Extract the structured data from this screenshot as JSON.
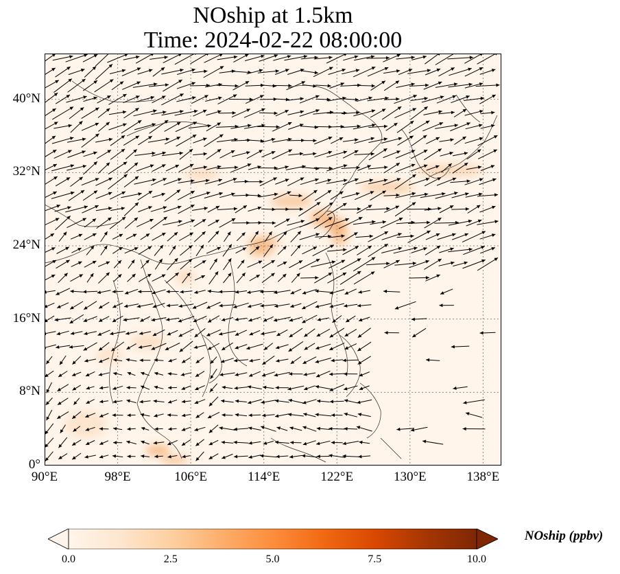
{
  "title_line1": "NOship at 1.5km",
  "title_line2": "Time: 2024-02-22 08:00:00",
  "map": {
    "lon_range": [
      90,
      140
    ],
    "lat_range": [
      0,
      45
    ],
    "lat_ticks": [
      "0°",
      "8°N",
      "16°N",
      "24°N",
      "32°N",
      "40°N"
    ],
    "lon_ticks": [
      "90°E",
      "98°E",
      "106°E",
      "114°E",
      "122°E",
      "130°E",
      "138°E"
    ],
    "gridlines": true,
    "grid_color": "#8a8a8a",
    "background_color": "#fff5ea",
    "field_color": "#f4a766",
    "coast_color": "#000000",
    "arrow_color": "#000000"
  },
  "colorbar": {
    "label": "NOship (ppbv)",
    "ticks": [
      "0.0",
      "2.5",
      "5.0",
      "7.5",
      "10.0"
    ],
    "range": [
      0,
      10
    ],
    "extend": "both",
    "colors": [
      "#fff5eb",
      "#fee6ce",
      "#fdd0a2",
      "#fdae6b",
      "#fd8d3c",
      "#f16913",
      "#d94801",
      "#a63603",
      "#7f2704"
    ]
  }
}
